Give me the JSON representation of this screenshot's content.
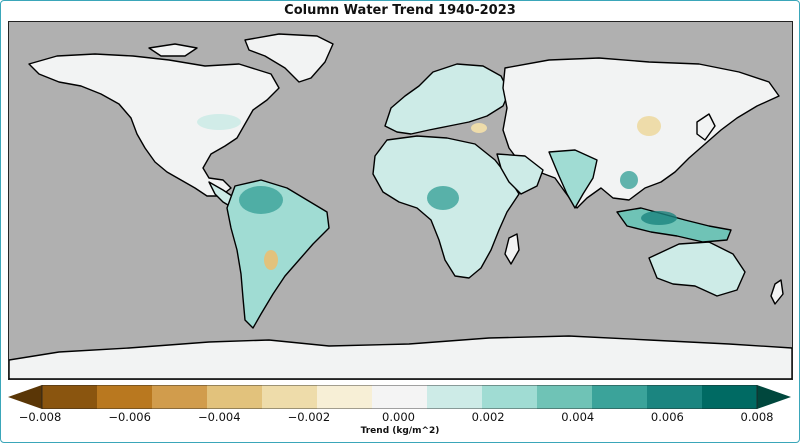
{
  "map": {
    "title": "Column Water Trend 1940-2023",
    "ocean_color": "#b0b0b0",
    "land_color": "#f2f3f3",
    "border_color": "#000000"
  },
  "legend": {
    "label": "Trend (kg/m^2)",
    "ticks": [
      "−0.008",
      "−0.006",
      "−0.004",
      "−0.002",
      "0.000",
      "0.002",
      "0.004",
      "0.006",
      "0.008"
    ],
    "min": -0.008,
    "max": 0.008,
    "bin_colors": [
      "#5a3606",
      "#8a550f",
      "#b9781f",
      "#d19c4c",
      "#e2c27c",
      "#eedcaa",
      "#f7efd6",
      "#f4f4f4",
      "#cdebe7",
      "#a0dcd3",
      "#6fc3b6",
      "#3ba39a",
      "#1b8580",
      "#006a63",
      "#00473d"
    ]
  }
}
